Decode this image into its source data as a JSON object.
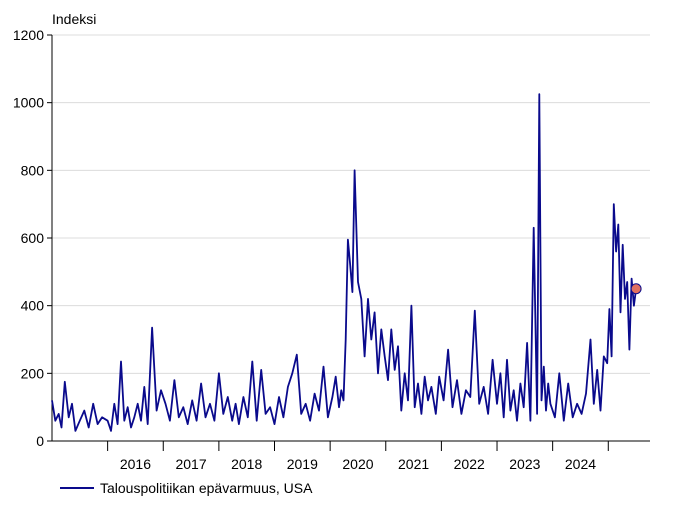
{
  "chart_data": {
    "type": "line",
    "ylabel": "Indeksi",
    "ylim": [
      0,
      1200
    ],
    "yticks": [
      0,
      200,
      400,
      600,
      800,
      1000,
      1200
    ],
    "xlim": [
      2015.0,
      2025.75
    ],
    "year_labels": [
      "2016",
      "2017",
      "2018",
      "2019",
      "2020",
      "2021",
      "2022",
      "2023",
      "2024"
    ],
    "grid": true,
    "legend_position": "bottom-left",
    "series": [
      {
        "name": "Talouspolitiikan epävarmuus, USA",
        "color": "#0a0a8c",
        "marker_last": true,
        "marker_color": "#e07060",
        "x": [
          2015.0,
          2015.06,
          2015.12,
          2015.17,
          2015.23,
          2015.3,
          2015.36,
          2015.42,
          2015.5,
          2015.58,
          2015.66,
          2015.74,
          2015.82,
          2015.9,
          2016.0,
          2016.06,
          2016.12,
          2016.18,
          2016.24,
          2016.3,
          2016.36,
          2016.42,
          2016.48,
          2016.54,
          2016.6,
          2016.66,
          2016.72,
          2016.8,
          2016.88,
          2016.96,
          2017.04,
          2017.12,
          2017.2,
          2017.28,
          2017.36,
          2017.44,
          2017.52,
          2017.6,
          2017.68,
          2017.76,
          2017.84,
          2017.92,
          2018.0,
          2018.08,
          2018.16,
          2018.24,
          2018.3,
          2018.36,
          2018.44,
          2018.52,
          2018.6,
          2018.68,
          2018.76,
          2018.84,
          2018.92,
          2019.0,
          2019.08,
          2019.16,
          2019.24,
          2019.32,
          2019.4,
          2019.48,
          2019.56,
          2019.64,
          2019.72,
          2019.8,
          2019.88,
          2019.96,
          2020.04,
          2020.1,
          2020.16,
          2020.2,
          2020.24,
          2020.28,
          2020.32,
          2020.36,
          2020.4,
          2020.44,
          2020.5,
          2020.56,
          2020.62,
          2020.68,
          2020.74,
          2020.8,
          2020.86,
          2020.92,
          2020.98,
          2021.04,
          2021.1,
          2021.16,
          2021.22,
          2021.28,
          2021.34,
          2021.4,
          2021.46,
          2021.52,
          2021.58,
          2021.64,
          2021.7,
          2021.76,
          2021.82,
          2021.9,
          2021.96,
          2022.04,
          2022.12,
          2022.2,
          2022.28,
          2022.36,
          2022.44,
          2022.52,
          2022.6,
          2022.68,
          2022.76,
          2022.84,
          2022.92,
          2023.0,
          2023.06,
          2023.12,
          2023.18,
          2023.24,
          2023.3,
          2023.36,
          2023.42,
          2023.48,
          2023.54,
          2023.6,
          2023.66,
          2023.72,
          2023.76,
          2023.8,
          2023.84,
          2023.88,
          2023.92,
          2023.96,
          2024.04,
          2024.12,
          2024.2,
          2024.28,
          2024.36,
          2024.44,
          2024.52,
          2024.6,
          2024.68,
          2024.74,
          2024.8,
          2024.86,
          2024.92,
          2024.98,
          2025.02,
          2025.06,
          2025.1,
          2025.14,
          2025.18,
          2025.22,
          2025.26,
          2025.3,
          2025.34,
          2025.38,
          2025.42,
          2025.46,
          2025.5
        ],
        "y": [
          120,
          60,
          80,
          40,
          175,
          70,
          110,
          30,
          60,
          90,
          40,
          110,
          50,
          70,
          60,
          30,
          110,
          50,
          235,
          60,
          100,
          40,
          70,
          110,
          60,
          160,
          50,
          335,
          90,
          150,
          110,
          60,
          180,
          70,
          100,
          50,
          120,
          60,
          170,
          70,
          110,
          60,
          200,
          80,
          130,
          60,
          110,
          50,
          130,
          70,
          235,
          60,
          210,
          80,
          100,
          50,
          130,
          70,
          160,
          200,
          255,
          80,
          110,
          60,
          140,
          90,
          220,
          70,
          130,
          190,
          100,
          150,
          120,
          300,
          595,
          520,
          440,
          800,
          470,
          420,
          250,
          420,
          300,
          380,
          200,
          330,
          250,
          180,
          330,
          210,
          280,
          90,
          200,
          120,
          400,
          100,
          170,
          80,
          190,
          120,
          160,
          80,
          190,
          120,
          270,
          100,
          180,
          80,
          150,
          130,
          385,
          110,
          160,
          80,
          240,
          110,
          200,
          70,
          240,
          90,
          150,
          60,
          170,
          100,
          290,
          60,
          630,
          80,
          1025,
          120,
          220,
          90,
          170,
          110,
          70,
          200,
          60,
          170,
          70,
          110,
          80,
          140,
          300,
          110,
          210,
          90,
          250,
          230,
          390,
          250,
          700,
          560,
          640,
          380,
          580,
          420,
          470,
          270,
          480,
          400,
          450
        ]
      }
    ]
  }
}
